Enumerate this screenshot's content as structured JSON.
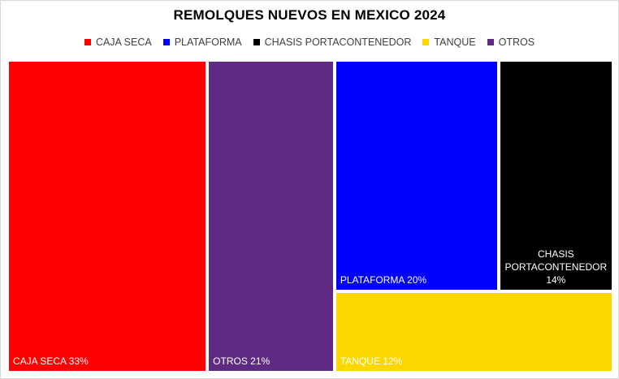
{
  "chart_data": {
    "type": "treemap",
    "title": "REMOLQUES NUEVOS EN MEXICO 2024",
    "legend_position": "top",
    "legend": [
      {
        "name": "CAJA SECA",
        "color": "#ff0000"
      },
      {
        "name": "PLATAFORMA",
        "color": "#0000ff"
      },
      {
        "name": "CHASIS PORTACONTENEDOR",
        "color": "#000000"
      },
      {
        "name": "TANQUE",
        "color": "#ffd700"
      },
      {
        "name": "OTROS",
        "color": "#5e2a84"
      }
    ],
    "items": [
      {
        "name": "CAJA SECA",
        "value": 33,
        "unit": "%",
        "label": "CAJA SECA 33%",
        "label_lines": [
          "CAJA SECA 33%"
        ],
        "color": "#ff0000"
      },
      {
        "name": "OTROS",
        "value": 21,
        "unit": "%",
        "label": "OTROS 21%",
        "label_lines": [
          "OTROS 21%"
        ],
        "color": "#5e2a84"
      },
      {
        "name": "PLATAFORMA",
        "value": 20,
        "unit": "%",
        "label": "PLATAFORMA 20%",
        "label_lines": [
          "PLATAFORMA 20%"
        ],
        "color": "#0000ff"
      },
      {
        "name": "CHASIS PORTACONTENEDOR",
        "value": 14,
        "unit": "%",
        "label": "CHASIS PORTACONTENEDOR 14%",
        "label_lines": [
          "CHASIS",
          "PORTACONTENEDOR",
          "14%"
        ],
        "color": "#000000"
      },
      {
        "name": "TANQUE",
        "value": 12,
        "unit": "%",
        "label": "TANQUE 12%",
        "label_lines": [
          "TANQUE 12%"
        ],
        "color": "#ffd700"
      }
    ]
  }
}
